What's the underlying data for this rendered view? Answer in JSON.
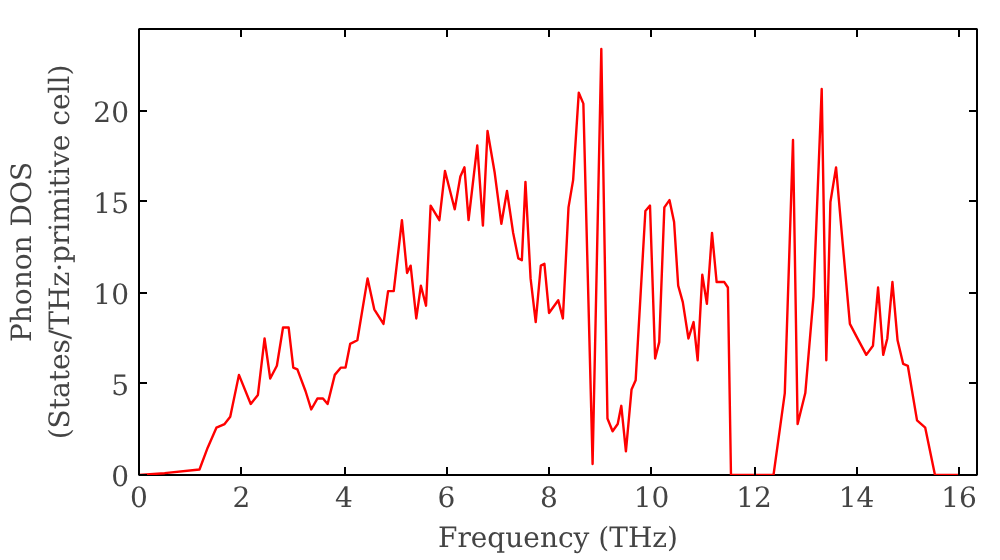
{
  "chart_data": {
    "type": "line",
    "xlabel": "Frequency (THz)",
    "ylabel": "Phonon DOS\n(States/THz·primitive cell)",
    "xlim": [
      0,
      16.35
    ],
    "ylim": [
      0,
      24.5
    ],
    "xticks": [
      0,
      2,
      4,
      6,
      8,
      10,
      12,
      14,
      16
    ],
    "yticks": [
      0,
      5,
      10,
      15,
      20
    ],
    "series": [
      {
        "color": "#ff0000",
        "x": [
          0,
          0.5,
          1.18,
          1.34,
          1.51,
          1.67,
          1.78,
          1.95,
          2.18,
          2.32,
          2.45,
          2.56,
          2.69,
          2.81,
          2.92,
          3.01,
          3.09,
          3.25,
          3.36,
          3.48,
          3.59,
          3.68,
          3.82,
          3.94,
          4.03,
          4.12,
          4.26,
          4.46,
          4.59,
          4.77,
          4.86,
          4.97,
          5.13,
          5.23,
          5.3,
          5.41,
          5.5,
          5.6,
          5.69,
          5.86,
          5.97,
          6.16,
          6.27,
          6.35,
          6.43,
          6.6,
          6.71,
          6.8,
          6.94,
          7.07,
          7.18,
          7.3,
          7.4,
          7.47,
          7.54,
          7.64,
          7.74,
          7.84,
          7.91,
          8.0,
          8.18,
          8.27,
          8.38,
          8.47,
          8.58,
          8.67,
          8.85,
          9.02,
          9.14,
          9.24,
          9.34,
          9.41,
          9.5,
          9.61,
          9.69,
          9.88,
          9.97,
          10.07,
          10.15,
          10.25,
          10.35,
          10.44,
          10.52,
          10.61,
          10.72,
          10.82,
          10.9,
          10.99,
          11.08,
          11.18,
          11.27,
          11.42,
          11.49,
          11.55,
          12.38,
          12.6,
          12.76,
          12.85,
          13.0,
          13.16,
          13.32,
          13.41,
          13.49,
          13.6,
          13.73,
          13.87,
          14.0,
          14.19,
          14.32,
          14.42,
          14.52,
          14.6,
          14.7,
          14.8,
          14.91,
          15.0,
          15.18,
          15.34,
          15.53,
          16.0
        ],
        "values": [
          0,
          0.1,
          0.3,
          1.5,
          2.6,
          2.8,
          3.2,
          5.5,
          3.9,
          4.4,
          7.5,
          5.3,
          6.0,
          8.1,
          8.1,
          5.9,
          5.8,
          4.6,
          3.6,
          4.2,
          4.2,
          3.9,
          5.5,
          5.9,
          5.9,
          7.2,
          7.4,
          10.8,
          9.1,
          8.3,
          10.1,
          10.1,
          14.0,
          11.1,
          11.5,
          8.6,
          10.4,
          9.3,
          14.8,
          14.0,
          16.7,
          14.6,
          16.4,
          16.9,
          14.0,
          18.1,
          13.7,
          18.9,
          16.6,
          13.8,
          15.6,
          13.3,
          11.9,
          11.8,
          16.1,
          10.8,
          8.4,
          11.5,
          11.6,
          8.9,
          9.6,
          8.6,
          14.7,
          16.2,
          21.0,
          20.4,
          0.6,
          23.4,
          3.1,
          2.4,
          2.8,
          3.8,
          1.3,
          4.7,
          5.2,
          14.5,
          14.8,
          6.4,
          7.3,
          14.7,
          15.1,
          13.9,
          10.4,
          9.5,
          7.5,
          8.4,
          6.3,
          11.0,
          9.4,
          13.3,
          10.6,
          10.6,
          10.3,
          0,
          0,
          4.5,
          18.4,
          2.8,
          4.5,
          9.8,
          21.2,
          6.3,
          15.0,
          16.9,
          12.7,
          8.3,
          7.6,
          6.6,
          7.1,
          10.3,
          6.6,
          7.5,
          10.6,
          7.4,
          6.1,
          6.0,
          3.0,
          2.6,
          0,
          0
        ]
      }
    ]
  }
}
